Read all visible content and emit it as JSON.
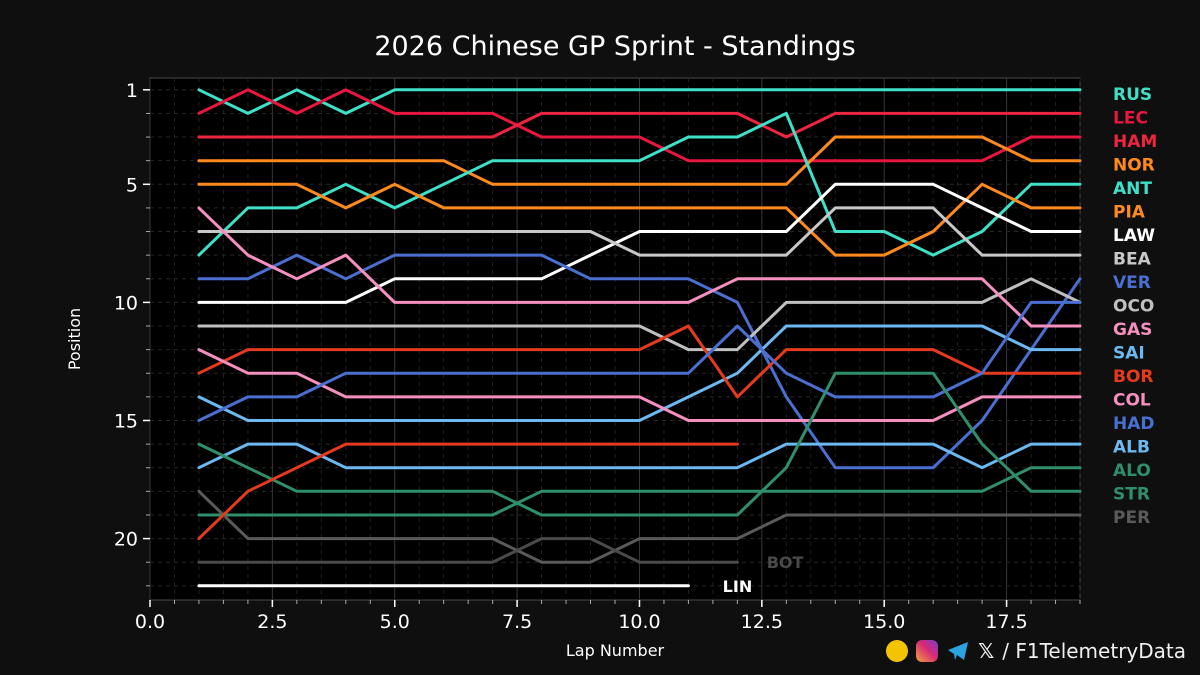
{
  "chart_data": {
    "type": "line",
    "title": "2026 Chinese GP Sprint - Standings",
    "xlabel": "Lap Number",
    "ylabel": "Position",
    "xlim": [
      0,
      19
    ],
    "ylim": [
      22.6,
      0.5
    ],
    "xticks": [
      "0.0",
      "2.5",
      "5.0",
      "7.5",
      "10.0",
      "12.5",
      "15.0",
      "17.5"
    ],
    "xtick_values": [
      0,
      2.5,
      5,
      7.5,
      10,
      12.5,
      15,
      17.5
    ],
    "yticks": [
      "1",
      "5",
      "10",
      "15",
      "20"
    ],
    "ytick_values": [
      1,
      5,
      10,
      15,
      20
    ],
    "grid": true,
    "legend_position": "right",
    "series": [
      {
        "name": "RUS",
        "color": "#3fe0c8",
        "x": [
          1,
          2,
          3,
          4,
          5,
          6,
          7,
          8,
          9,
          10,
          11,
          12,
          13,
          14,
          15,
          16,
          17,
          18,
          19
        ],
        "y": [
          1,
          2,
          1,
          2,
          1,
          1,
          1,
          1,
          1,
          1,
          1,
          1,
          1,
          1,
          1,
          1,
          1,
          1,
          1
        ]
      },
      {
        "name": "LEC",
        "color": "#e8173f",
        "x": [
          1,
          2,
          3,
          4,
          5,
          6,
          7,
          8,
          9,
          10,
          11,
          12,
          13,
          14,
          15,
          16,
          17,
          18,
          19
        ],
        "y": [
          2,
          1,
          2,
          1,
          2,
          2,
          2,
          3,
          3,
          3,
          4,
          4,
          4,
          4,
          4,
          4,
          4,
          3,
          3
        ]
      },
      {
        "name": "HAM",
        "color": "#ee2540",
        "x": [
          1,
          2,
          3,
          4,
          5,
          6,
          7,
          8,
          9,
          10,
          11,
          12,
          13,
          14,
          15,
          16,
          17,
          18,
          19
        ],
        "y": [
          3,
          3,
          3,
          3,
          3,
          3,
          3,
          2,
          2,
          2,
          2,
          2,
          3,
          2,
          2,
          2,
          2,
          2,
          2
        ]
      },
      {
        "name": "NOR",
        "color": "#ff8a1c",
        "x": [
          1,
          2,
          3,
          4,
          5,
          6,
          7,
          8,
          9,
          10,
          11,
          12,
          13,
          14,
          15,
          16,
          17,
          18,
          19
        ],
        "y": [
          4,
          4,
          4,
          4,
          4,
          4,
          5,
          5,
          5,
          5,
          5,
          5,
          5,
          3,
          3,
          3,
          3,
          4,
          4
        ]
      },
      {
        "name": "ANT",
        "color": "#3fe0c8",
        "x": [
          1,
          2,
          3,
          4,
          5,
          6,
          7,
          8,
          9,
          10,
          11,
          12,
          13,
          14,
          15,
          16,
          17,
          18,
          19
        ],
        "y": [
          8,
          6,
          6,
          5,
          6,
          5,
          4,
          4,
          4,
          4,
          3,
          3,
          2,
          7,
          7,
          8,
          7,
          5,
          5
        ]
      },
      {
        "name": "PIA",
        "color": "#ff8a1c",
        "x": [
          1,
          2,
          3,
          4,
          5,
          6,
          7,
          8,
          9,
          10,
          11,
          12,
          13,
          14,
          15,
          16,
          17,
          18,
          19
        ],
        "y": [
          5,
          5,
          5,
          6,
          5,
          6,
          6,
          6,
          6,
          6,
          6,
          6,
          6,
          8,
          8,
          7,
          5,
          6,
          6
        ]
      },
      {
        "name": "LAW",
        "color": "#ffffff",
        "x": [
          1,
          2,
          3,
          4,
          5,
          6,
          7,
          8,
          9,
          10,
          11,
          12,
          13,
          14,
          15,
          16,
          17,
          18,
          19
        ],
        "y": [
          10,
          10,
          10,
          10,
          9,
          9,
          9,
          9,
          8,
          7,
          7,
          7,
          7,
          5,
          5,
          5,
          6,
          7,
          7
        ]
      },
      {
        "name": "BEA",
        "color": "#c8c8c8",
        "x": [
          1,
          2,
          3,
          4,
          5,
          6,
          7,
          8,
          9,
          10,
          11,
          12,
          13,
          14,
          15,
          16,
          17,
          18,
          19
        ],
        "y": [
          7,
          7,
          7,
          7,
          7,
          7,
          7,
          7,
          7,
          8,
          8,
          8,
          8,
          6,
          6,
          6,
          8,
          8,
          8
        ]
      },
      {
        "name": "VER",
        "color": "#4a6fd0",
        "x": [
          1,
          2,
          3,
          4,
          5,
          6,
          7,
          8,
          9,
          10,
          11,
          12,
          13,
          14,
          15,
          16,
          17,
          18,
          19
        ],
        "y": [
          9,
          9,
          8,
          9,
          8,
          8,
          8,
          8,
          9,
          9,
          9,
          10,
          14,
          17,
          17,
          17,
          15,
          12,
          9
        ]
      },
      {
        "name": "OCO",
        "color": "#c0c0c0",
        "x": [
          1,
          2,
          3,
          4,
          5,
          6,
          7,
          8,
          9,
          10,
          11,
          12,
          13,
          14,
          15,
          16,
          17,
          18,
          19
        ],
        "y": [
          11,
          11,
          11,
          11,
          11,
          11,
          11,
          11,
          11,
          11,
          12,
          12,
          10,
          10,
          10,
          10,
          10,
          9,
          10
        ]
      },
      {
        "name": "GAS",
        "color": "#f58fc0",
        "x": [
          1,
          2,
          3,
          4,
          5,
          6,
          7,
          8,
          9,
          10,
          11,
          12,
          13,
          14,
          15,
          16,
          17,
          18,
          19
        ],
        "y": [
          6,
          8,
          9,
          8,
          10,
          10,
          10,
          10,
          10,
          10,
          10,
          9,
          9,
          9,
          9,
          9,
          9,
          11,
          11
        ]
      },
      {
        "name": "SAI",
        "color": "#6cb8f0",
        "x": [
          1,
          2,
          3,
          4,
          5,
          6,
          7,
          8,
          9,
          10,
          11,
          12,
          13,
          14,
          15,
          16,
          17,
          18,
          19
        ],
        "y": [
          14,
          15,
          15,
          15,
          15,
          15,
          15,
          15,
          15,
          15,
          14,
          13,
          11,
          11,
          11,
          11,
          11,
          12,
          12
        ]
      },
      {
        "name": "BOR",
        "color": "#e63a1e",
        "x": [
          1,
          2,
          3,
          4,
          5,
          6,
          7,
          8,
          9,
          10,
          11,
          12,
          13,
          14,
          15,
          16,
          17,
          18,
          19
        ],
        "y": [
          13,
          12,
          12,
          12,
          12,
          12,
          12,
          12,
          12,
          12,
          11,
          14,
          12,
          12,
          12,
          12,
          13,
          13,
          13
        ]
      },
      {
        "name": "COL",
        "color": "#f58fc0",
        "x": [
          1,
          2,
          3,
          4,
          5,
          6,
          7,
          8,
          9,
          10,
          11,
          12,
          13,
          14,
          15,
          16,
          17,
          18,
          19
        ],
        "y": [
          12,
          13,
          13,
          14,
          14,
          14,
          14,
          14,
          14,
          14,
          15,
          15,
          15,
          15,
          15,
          15,
          14,
          14,
          14
        ]
      },
      {
        "name": "HAD",
        "color": "#4a6fd0",
        "x": [
          1,
          2,
          3,
          4,
          5,
          6,
          7,
          8,
          9,
          10,
          11,
          12,
          13,
          14,
          15,
          16,
          17,
          18,
          19
        ],
        "y": [
          15,
          14,
          14,
          13,
          13,
          13,
          13,
          13,
          13,
          13,
          13,
          11,
          13,
          14,
          14,
          14,
          13,
          10,
          10
        ]
      },
      {
        "name": "ALB",
        "color": "#6cb8f0",
        "x": [
          1,
          2,
          3,
          4,
          5,
          6,
          7,
          8,
          9,
          10,
          11,
          12,
          13,
          14,
          15,
          16,
          17,
          18,
          19
        ],
        "y": [
          17,
          16,
          16,
          17,
          17,
          17,
          17,
          17,
          17,
          17,
          17,
          17,
          16,
          16,
          16,
          16,
          17,
          16,
          16
        ]
      },
      {
        "name": "ALO",
        "color": "#2f8f6a",
        "x": [
          1,
          2,
          3,
          4,
          5,
          6,
          7,
          8,
          9,
          10,
          11,
          12,
          13,
          14,
          15,
          16,
          17,
          18,
          19
        ],
        "y": [
          16,
          17,
          18,
          18,
          18,
          18,
          18,
          19,
          19,
          19,
          19,
          19,
          17,
          13,
          13,
          13,
          16,
          18,
          18
        ]
      },
      {
        "name": "STR",
        "color": "#2f8f6a",
        "x": [
          1,
          2,
          3,
          4,
          5,
          6,
          7,
          8,
          9,
          10,
          11,
          12,
          13,
          14,
          15,
          16,
          17,
          18,
          19
        ],
        "y": [
          19,
          19,
          19,
          19,
          19,
          19,
          19,
          18,
          18,
          18,
          18,
          18,
          18,
          18,
          18,
          18,
          18,
          17,
          17
        ]
      },
      {
        "name": "PER",
        "color": "#5a5a5a",
        "x": [
          1,
          2,
          3,
          4,
          5,
          6,
          7,
          8,
          9,
          10,
          11,
          12,
          13,
          14,
          15,
          16,
          17,
          18,
          19
        ],
        "y": [
          18,
          20,
          20,
          20,
          20,
          20,
          20,
          21,
          21,
          20,
          20,
          20,
          19,
          19,
          19,
          19,
          19,
          19,
          19
        ]
      },
      {
        "name": "BOT",
        "color": "#4a4a4a",
        "x": [
          1,
          2,
          3,
          4,
          5,
          6,
          7,
          8,
          9,
          10,
          11,
          12
        ],
        "y": [
          21,
          21,
          21,
          21,
          21,
          21,
          21,
          20,
          20,
          21,
          21,
          21
        ]
      },
      {
        "name": "LIN",
        "color": "#ffffff",
        "x": [
          1,
          2,
          3,
          4,
          5,
          6,
          7,
          8,
          9,
          10,
          11
        ],
        "y": [
          22,
          22,
          22,
          22,
          22,
          22,
          22,
          22,
          22,
          22,
          22
        ]
      },
      {
        "name": "",
        "color": "#e63a1e",
        "x": [
          1,
          2,
          3,
          4,
          5,
          6,
          7,
          8,
          9,
          10,
          11,
          12
        ],
        "y": [
          20,
          18,
          17,
          16,
          16,
          16,
          16,
          16,
          16,
          16,
          16,
          16
        ]
      }
    ],
    "inline_labels": [
      {
        "text": "BOT",
        "x": 12.6,
        "y": 21,
        "color": "#4a4a4a"
      },
      {
        "text": "LIN",
        "x": 11.7,
        "y": 22,
        "color": "#ffffff"
      }
    ]
  },
  "footer": {
    "handle": "/ F1TelemetryData",
    "icons": [
      "podcast-icon",
      "instagram-icon",
      "telegram-icon",
      "x-icon"
    ],
    "x_glyph": "𝕏"
  }
}
